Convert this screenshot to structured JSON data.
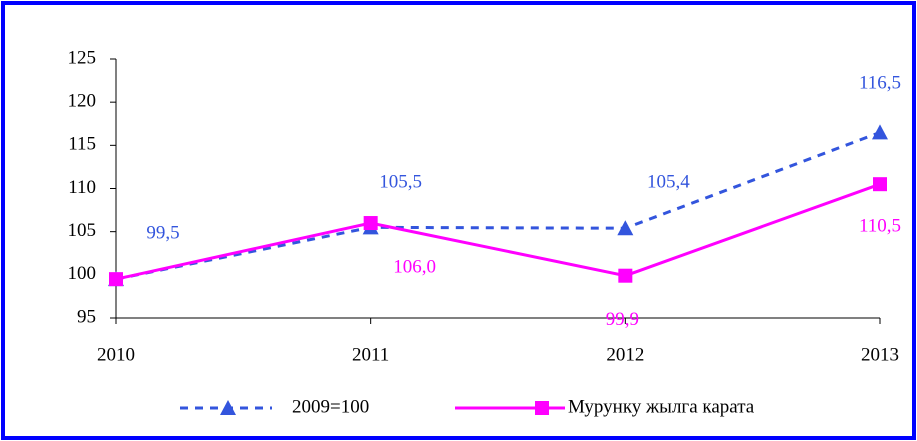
{
  "chart_data": {
    "type": "line",
    "categories": [
      "2010",
      "2011",
      "2012",
      "2013"
    ],
    "series": [
      {
        "name": "2009=100",
        "color": "#3355dd",
        "marker": "triangle",
        "dashed": true,
        "values": [
          99.5,
          105.5,
          105.4,
          116.5
        ],
        "value_labels": [
          "99,5",
          "105,5",
          "105,4",
          "116,5"
        ]
      },
      {
        "name": "Мурунку жылга карата",
        "color": "#ff00ff",
        "marker": "square",
        "dashed": false,
        "values": [
          99.5,
          106.0,
          99.9,
          110.5
        ],
        "value_labels": [
          null,
          "106,0",
          "99,9",
          "110,5"
        ]
      }
    ],
    "ylim": [
      95,
      125
    ],
    "yticks": [
      95,
      100,
      105,
      110,
      115,
      120,
      125
    ],
    "grid": false,
    "legend": "bottom"
  }
}
